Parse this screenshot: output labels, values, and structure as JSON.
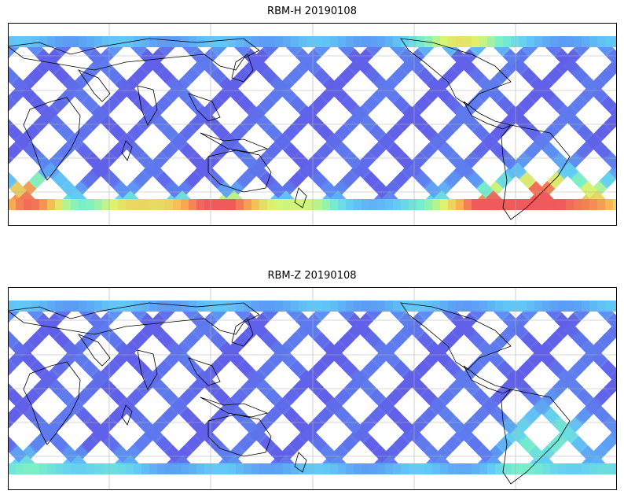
{
  "figure": {
    "panels": [
      {
        "title": "RBM-H 20190108",
        "colormap": "jet",
        "hotspots": [
          {
            "region": "South Atlantic / east of South America",
            "level": 0.85
          },
          {
            "region": "Southern Ocean west (south of Africa, far left)",
            "level": 0.75
          },
          {
            "region": "Southern Ocean south of Australia",
            "level": 0.6
          },
          {
            "region": "South Pacific near South America",
            "level": 0.55
          },
          {
            "region": "North Pacific near Alaska",
            "level": 0.5
          }
        ]
      },
      {
        "title": "RBM-Z 20190108",
        "colormap": "jet",
        "hotspots": [
          {
            "region": "South Atlantic / east of South America",
            "level": 0.55
          },
          {
            "region": "Southern Ocean west",
            "level": 0.35
          }
        ]
      }
    ],
    "style": {
      "gridlines": true,
      "coastlines": true,
      "track_color_low": "#6060e8",
      "track_color_mid": "#60c8f0",
      "track_color_high": "#f06060"
    }
  }
}
